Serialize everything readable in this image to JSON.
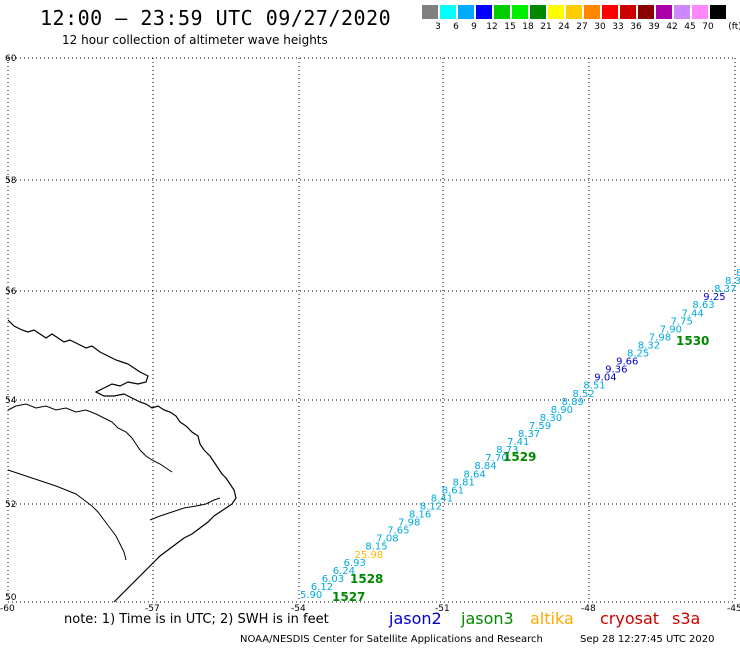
{
  "header": {
    "title": "12:00 – 23:59 UTC 09/27/2020",
    "subtitle": "12 hour collection of altimeter wave heights"
  },
  "legend": {
    "unit": "(ft)",
    "bins": [
      {
        "label": "3",
        "color": "#808080"
      },
      {
        "label": "6",
        "color": "#00ffff"
      },
      {
        "label": "9",
        "color": "#00aaff"
      },
      {
        "label": "12",
        "color": "#0000ff"
      },
      {
        "label": "15",
        "color": "#00cc00"
      },
      {
        "label": "18",
        "color": "#00ee00"
      },
      {
        "label": "21",
        "color": "#008800"
      },
      {
        "label": "24",
        "color": "#ffff00"
      },
      {
        "label": "27",
        "color": "#ffcc00"
      },
      {
        "label": "30",
        "color": "#ff8800"
      },
      {
        "label": "33",
        "color": "#ff0000"
      },
      {
        "label": "36",
        "color": "#cc0000"
      },
      {
        "label": "39",
        "color": "#880000"
      },
      {
        "label": "42",
        "color": "#aa00aa"
      },
      {
        "label": "45",
        "color": "#cc88ff"
      },
      {
        "label": "70",
        "color": "#ff88ff"
      },
      {
        "label": "",
        "color": "#000000"
      }
    ]
  },
  "axes": {
    "lat_labels": [
      "60",
      "58",
      "56",
      "54",
      "52",
      "50"
    ],
    "lon_labels": [
      "-60",
      "-57",
      "-54",
      "-51",
      "-48",
      "-45"
    ]
  },
  "track": {
    "values": [
      "5.90",
      "6.12",
      "6.03",
      "6.24",
      "6.93",
      "25.98",
      "8.15",
      "7.08",
      "7.65",
      "7.98",
      "8.16",
      "8.12",
      "8.41",
      "8.61",
      "8.81",
      "8.64",
      "8.84",
      "7.70",
      "8.73",
      "7.41",
      "8.37",
      "7.59",
      "8.30",
      "8.90",
      "8.89",
      "8.52",
      "8.51",
      "9.04",
      "9.36",
      "9.66",
      "8.25",
      "8.32",
      "7.98",
      "7.90",
      "7.75",
      "7.44",
      "8.63",
      "9.25",
      "8.37",
      "8.30",
      "8.3"
    ],
    "orbit_labels": [
      "1527",
      "1528",
      "1529",
      "1530"
    ]
  },
  "footer": {
    "note": "note: 1) Time is in UTC; 2) SWH is in feet",
    "sat_jason2": "jason2",
    "sat_jason3": "jason3",
    "sat_altika": "altika",
    "sat_cryosat": "cryosat",
    "sat_s3a": "s3a",
    "credit": "NOAA/NESDIS Center for Satellite Applications and Research",
    "timestamp": "Sep 28 12:27:45 UTC 2020"
  },
  "colors": {
    "jason2": "#0000cc",
    "jason3": "#008800",
    "altika": "#ffaa00",
    "cryosat": "#cc0000",
    "s3a": "#cc0000",
    "track_default": "#00aadd",
    "track_blue": "#0000cc",
    "track_yellow": "#ffbb00",
    "orbit": "#008800"
  }
}
